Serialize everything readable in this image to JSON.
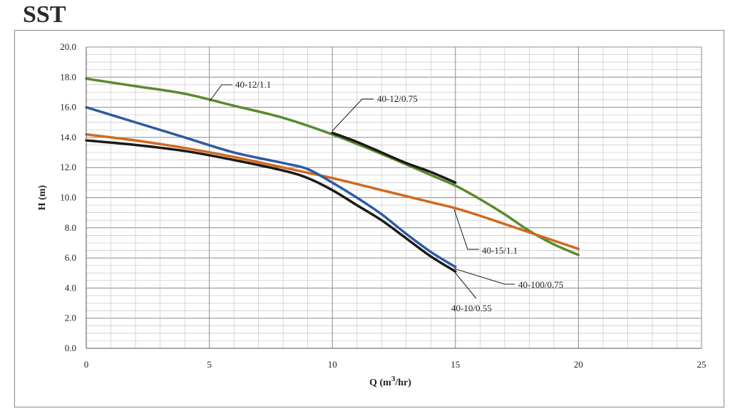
{
  "page": {
    "title": "SST"
  },
  "chart_data": {
    "type": "line",
    "xlabel_main": "Q (m",
    "xlabel_sup": "3",
    "xlabel_end": "/hr)",
    "ylabel": "H (m)",
    "xlim": [
      0,
      25
    ],
    "ylim": [
      0,
      20
    ],
    "x_ticks": [
      0,
      5,
      10,
      15,
      20,
      25
    ],
    "y_ticks": [
      "0.0",
      "2.0",
      "4.0",
      "6.0",
      "8.0",
      "10.0",
      "12.0",
      "14.0",
      "16.0",
      "18.0",
      "20.0"
    ],
    "grid": true,
    "series": [
      {
        "name": "40-12/1.1",
        "color": "#5a8a2e",
        "x": [
          0,
          2,
          4,
          6,
          8,
          10,
          12,
          14,
          15,
          16,
          17,
          18,
          19,
          20
        ],
        "y": [
          17.9,
          17.4,
          16.9,
          16.1,
          15.3,
          14.2,
          12.9,
          11.5,
          10.8,
          9.9,
          8.9,
          7.8,
          6.9,
          6.2
        ]
      },
      {
        "name": "40-12/0.75",
        "color": "#1a1a1a",
        "x": [
          10,
          11,
          12,
          13,
          14,
          15
        ],
        "y": [
          14.3,
          13.7,
          13.0,
          12.3,
          11.7,
          11.0
        ]
      },
      {
        "name": "40-15/1.1",
        "color": "#d2691e",
        "x": [
          0,
          2,
          4,
          6,
          8,
          10,
          12,
          14,
          15,
          16,
          18,
          20
        ],
        "y": [
          14.2,
          13.8,
          13.3,
          12.7,
          12.0,
          11.3,
          10.5,
          9.7,
          9.3,
          8.8,
          7.7,
          6.6
        ]
      },
      {
        "name": "40-100/0.75",
        "color": "#2f5aa0",
        "x": [
          0,
          2,
          4,
          6,
          8,
          9,
          10,
          11,
          12,
          13,
          14,
          15
        ],
        "y": [
          16.0,
          15.0,
          14.0,
          13.0,
          12.3,
          11.9,
          11.0,
          10.0,
          8.9,
          7.6,
          6.4,
          5.4
        ]
      },
      {
        "name": "40-10/0.55",
        "color": "#1a1a1a",
        "x": [
          0,
          2,
          4,
          6,
          8,
          9,
          10,
          11,
          12,
          13,
          14,
          15
        ],
        "y": [
          13.8,
          13.5,
          13.1,
          12.5,
          11.8,
          11.3,
          10.5,
          9.5,
          8.5,
          7.3,
          6.1,
          5.1
        ]
      }
    ],
    "annotations": [
      {
        "text": "40-12/1.1"
      },
      {
        "text": "40-12/0.75"
      },
      {
        "text": "40-15/1.1"
      },
      {
        "text": "40-100/0.75"
      },
      {
        "text": "40-10/0.55"
      }
    ]
  }
}
